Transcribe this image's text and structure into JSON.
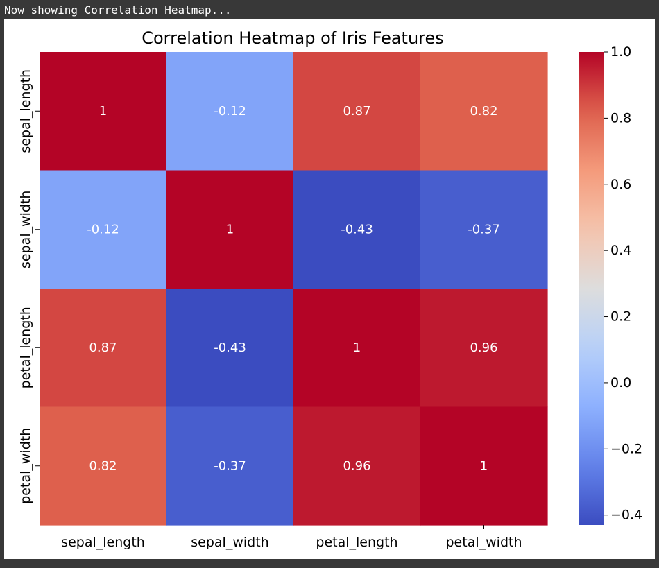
{
  "console": {
    "message": "Now showing Correlation Heatmap..."
  },
  "chart_data": {
    "type": "heatmap",
    "title": "Correlation Heatmap of Iris Features",
    "xlabel": "",
    "ylabel": "",
    "x_categories": [
      "sepal_length",
      "sepal_width",
      "petal_length",
      "petal_width"
    ],
    "y_categories": [
      "sepal_length",
      "sepal_width",
      "petal_length",
      "petal_width"
    ],
    "values": [
      [
        1,
        -0.12,
        0.87,
        0.82
      ],
      [
        -0.12,
        1,
        -0.43,
        -0.37
      ],
      [
        0.87,
        -0.43,
        1,
        0.96
      ],
      [
        0.82,
        -0.37,
        0.96,
        1
      ]
    ],
    "annotations": [
      [
        "1",
        "-0.12",
        "0.87",
        "0.82"
      ],
      [
        "-0.12",
        "1",
        "-0.43",
        "-0.37"
      ],
      [
        "0.87",
        "-0.43",
        "1",
        "0.96"
      ],
      [
        "0.82",
        "-0.37",
        "0.96",
        "1"
      ]
    ],
    "colormap": "coolwarm",
    "colorbar": {
      "range": [
        -0.43,
        1.0
      ],
      "ticks": [
        1.0,
        0.8,
        0.6,
        0.4,
        0.2,
        0.0,
        -0.2,
        -0.4
      ],
      "tick_labels": [
        "1.0",
        "0.8",
        "0.6",
        "0.4",
        "0.2",
        "0.0",
        "−0.2",
        "−0.4"
      ]
    },
    "annotation_color": "#ffffff",
    "grid": false
  }
}
